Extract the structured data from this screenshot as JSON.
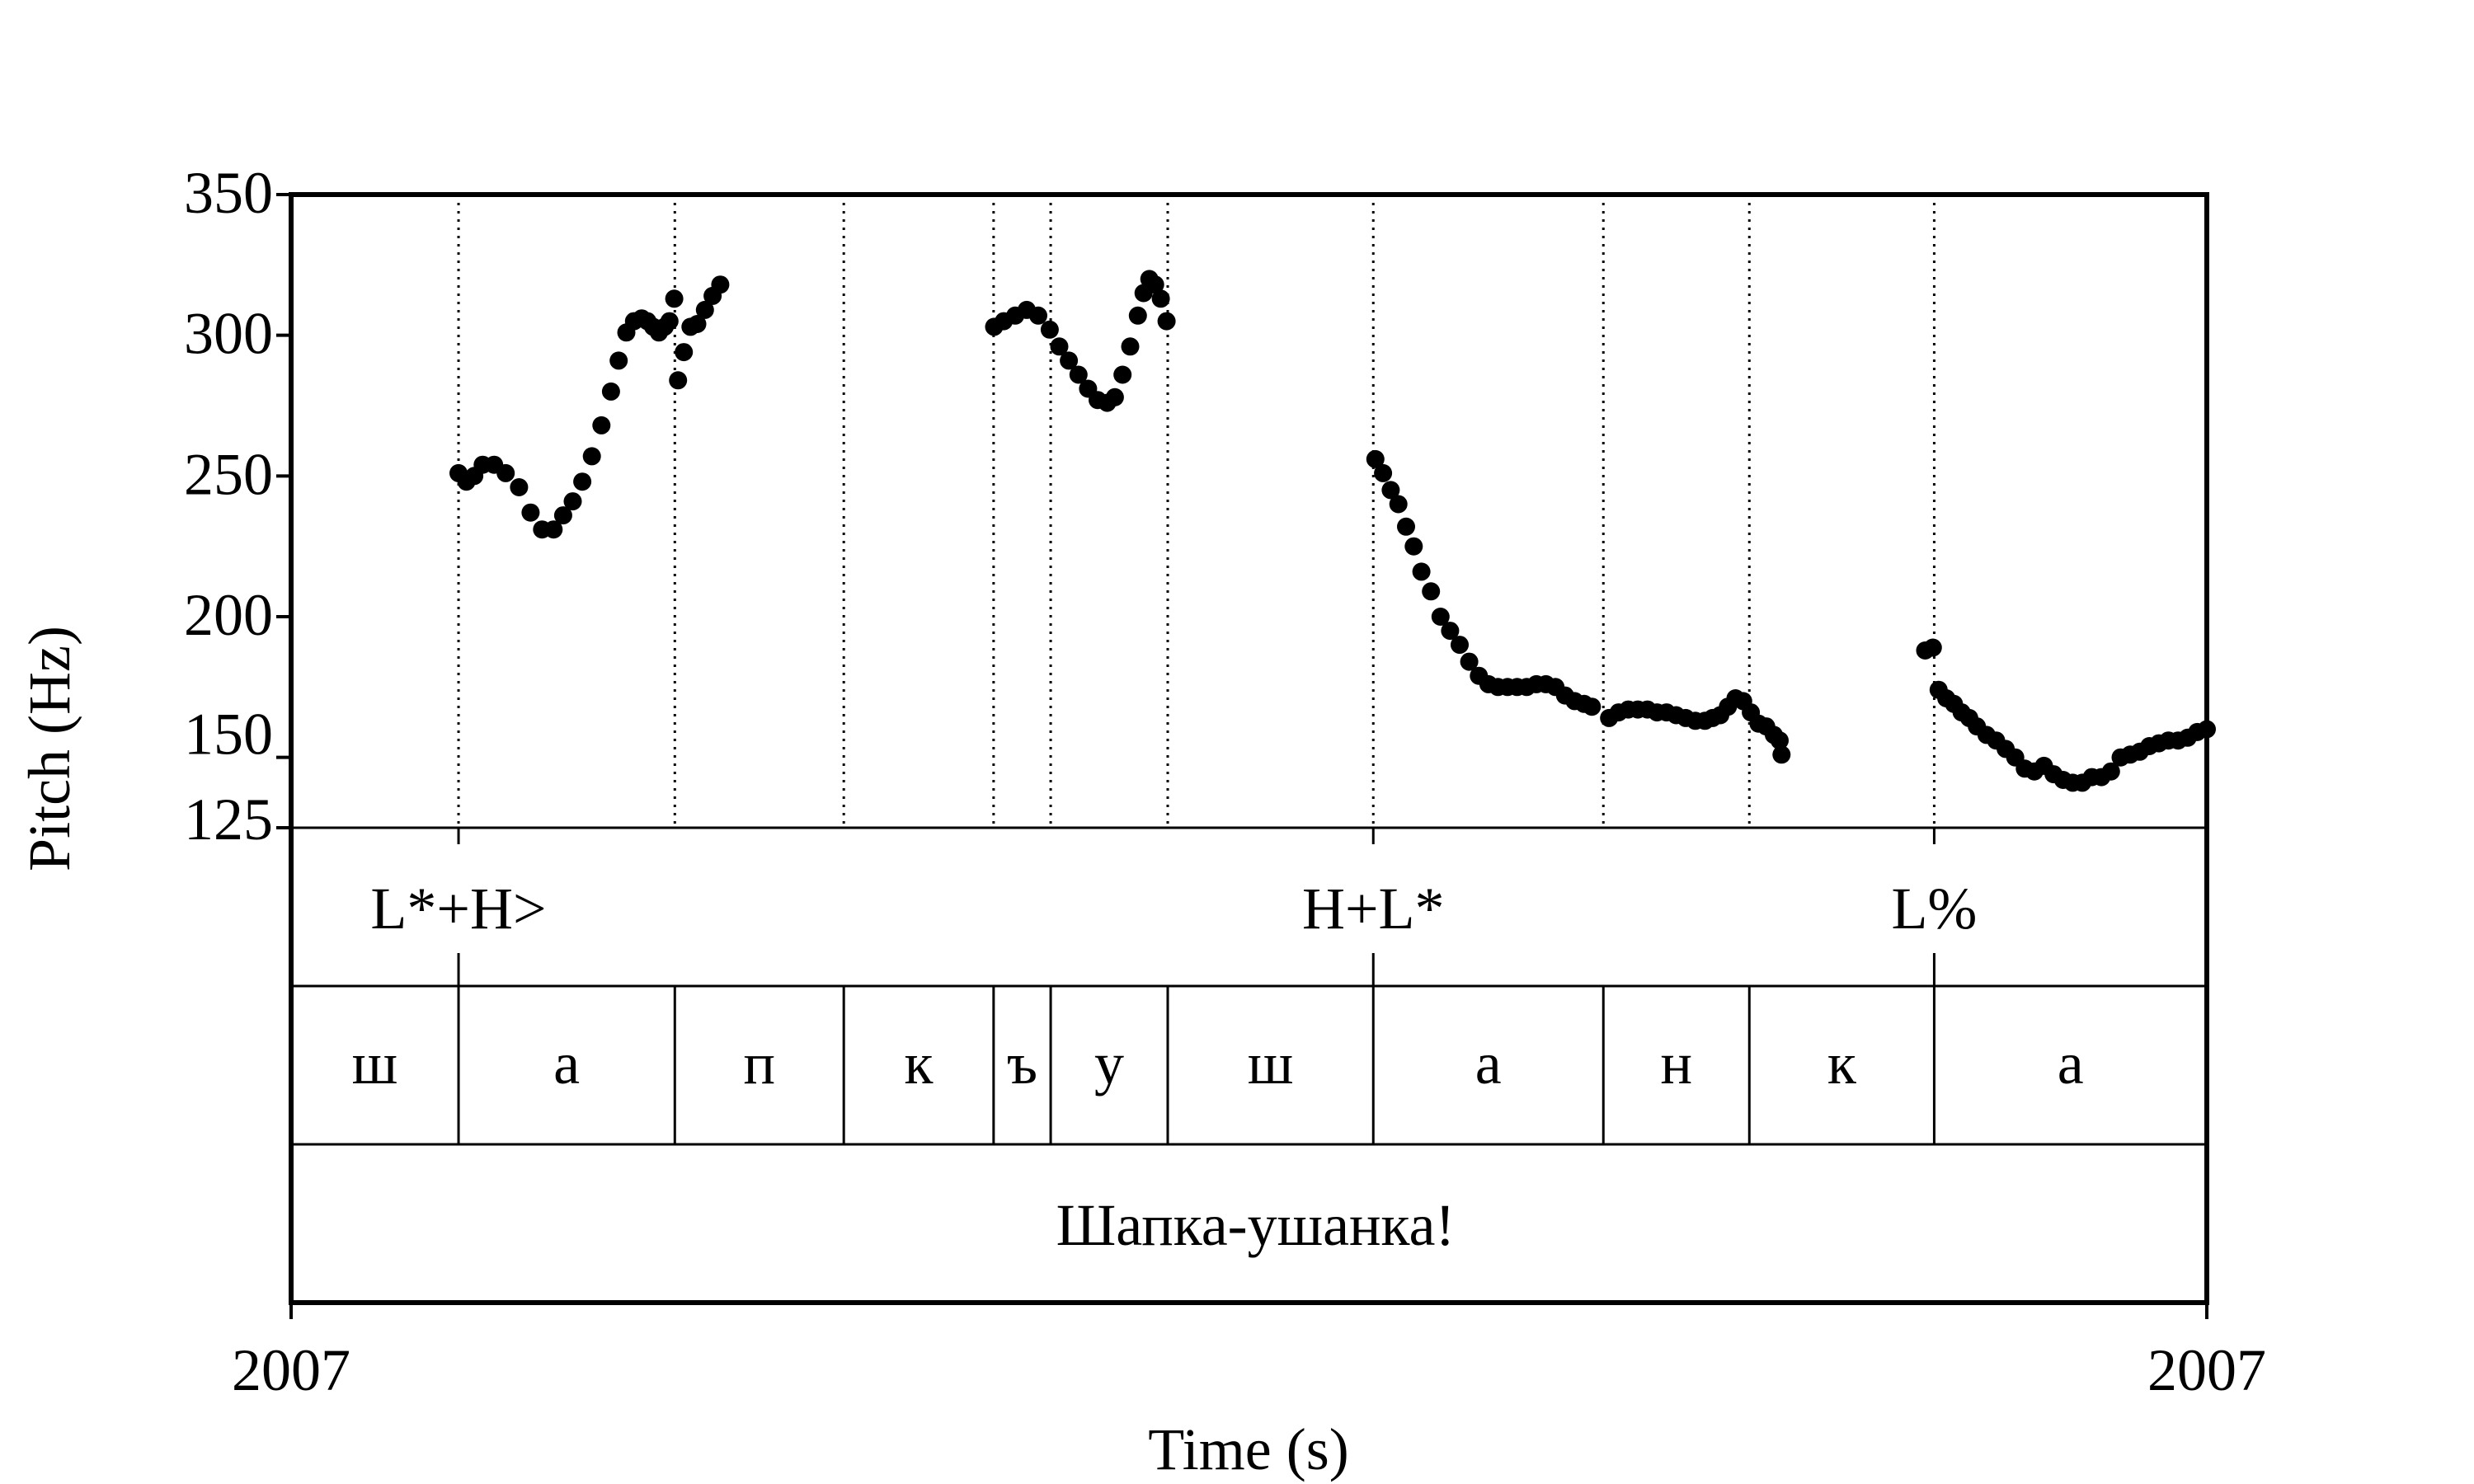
{
  "chart_data": {
    "type": "scatter",
    "xlabel": "Time (s)",
    "ylabel": "Pitch (Hz)",
    "xlim": [
      0,
      1
    ],
    "ylim": [
      125,
      350
    ],
    "x_tick_labels": [
      "2007",
      "2007"
    ],
    "y_ticks": [
      125,
      150,
      200,
      250,
      300,
      350
    ],
    "y_tick_labels": [
      "125",
      "150",
      "200",
      "250",
      "300",
      "350"
    ],
    "boundaries": [
      0.0874,
      0.2003,
      0.2885,
      0.3667,
      0.3965,
      0.4576,
      0.5649,
      0.685,
      0.7612,
      0.8577
    ],
    "tiers": [
      {
        "name": "tones",
        "labels": [
          {
            "text": "L*+H>",
            "x": 0.0874
          },
          {
            "text": "H+L*",
            "x": 0.5649
          },
          {
            "text": "L%",
            "x": 0.8577
          }
        ]
      },
      {
        "name": "segments",
        "intervals": [
          {
            "text": "ш",
            "start": 0.0,
            "end": 0.0874
          },
          {
            "text": "а",
            "start": 0.0874,
            "end": 0.2003
          },
          {
            "text": "п",
            "start": 0.2003,
            "end": 0.2885
          },
          {
            "text": "к",
            "start": 0.2885,
            "end": 0.3667
          },
          {
            "text": "ъ",
            "start": 0.3667,
            "end": 0.3965
          },
          {
            "text": "у",
            "start": 0.3965,
            "end": 0.4576
          },
          {
            "text": "ш",
            "start": 0.4576,
            "end": 0.5649
          },
          {
            "text": "а",
            "start": 0.5649,
            "end": 0.685
          },
          {
            "text": "н",
            "start": 0.685,
            "end": 0.7612
          },
          {
            "text": "к",
            "start": 0.7612,
            "end": 0.8577
          },
          {
            "text": "а",
            "start": 0.8577,
            "end": 1.0
          }
        ]
      },
      {
        "name": "words",
        "intervals": [
          {
            "text": "Шапка-ушанка!",
            "start": 0.0,
            "end": 1.0
          }
        ]
      }
    ],
    "series": [
      {
        "segments": [
          {
            "x": [
              0.0874,
              0.0915,
              0.0956,
              0.1,
              0.106,
              0.112,
              0.119,
              0.125,
              0.131,
              0.137,
              0.142,
              0.147,
              0.152,
              0.157,
              0.162,
              0.167,
              0.171,
              0.175,
              0.179,
              0.183,
              0.186,
              0.189,
              0.192,
              0.195,
              0.1975,
              0.2
            ],
            "y": [
              251,
              248,
              250,
              254,
              254,
              251,
              246,
              237,
              231,
              231,
              236,
              241,
              248,
              257,
              268,
              280,
              291,
              301,
              305,
              306,
              305,
              303,
              301,
              303,
              305,
              313
            ]
          },
          {
            "x": [
              0.202,
              0.205,
              0.2085,
              0.212,
              0.216,
              0.22,
              0.224
            ],
            "y": [
              284,
              294,
              303,
              304,
              309,
              314,
              318
            ]
          }
        ]
      },
      {
        "segments": [
          {
            "x": [
              0.367,
              0.372,
              0.378,
              0.384,
              0.39,
              0.396,
              0.401,
              0.406,
              0.411,
              0.416,
              0.421,
              0.426,
              0.43,
              0.434,
              0.438,
              0.442,
              0.445,
              0.448,
              0.451,
              0.454,
              0.457
            ],
            "y": [
              303,
              305,
              307,
              309,
              307,
              302,
              296,
              291,
              286,
              281,
              277,
              276,
              278,
              286,
              296,
              307,
              315,
              320,
              318,
              313,
              305
            ]
          }
        ]
      },
      {
        "segments": [
          {
            "x": [
              0.566,
              0.57,
              0.574,
              0.578,
              0.582,
              0.586,
              0.59,
              0.595,
              0.6,
              0.605,
              0.61,
              0.615,
              0.62,
              0.625,
              0.63,
              0.635,
              0.64,
              0.645,
              0.65,
              0.655,
              0.66,
              0.665,
              0.67,
              0.675,
              0.679
            ],
            "y": [
              256,
              251,
              245,
              240,
              232,
              225,
              216,
              209,
              200,
              195,
              190,
              184,
              179,
              176,
              175,
              175,
              175,
              175,
              176,
              176,
              175,
              172,
              170,
              169,
              168
            ]
          },
          {
            "x": [
              0.688,
              0.693,
              0.698,
              0.703,
              0.708,
              0.713,
              0.718,
              0.723,
              0.728,
              0.733,
              0.738,
              0.742,
              0.746,
              0.75,
              0.754,
              0.758,
              0.762,
              0.766,
              0.77,
              0.774,
              0.777
            ],
            "y": [
              164,
              166,
              167,
              167,
              167,
              166,
              166,
              165,
              164,
              163,
              163,
              164,
              165,
              168,
              171,
              170,
              166,
              162,
              161,
              158,
              156
            ]
          },
          {
            "x": [
              0.778
            ],
            "y": [
              151
            ]
          }
        ]
      },
      {
        "segments": [
          {
            "x": [
              0.853,
              0.857
            ],
            "y": [
              188,
              189
            ]
          },
          {
            "x": [
              0.86,
              0.864,
              0.868,
              0.872,
              0.876,
              0.88,
              0.885,
              0.89,
              0.895,
              0.9,
              0.905,
              0.91,
              0.915,
              0.92,
              0.925,
              0.93,
              0.935,
              0.94,
              0.945,
              0.95,
              0.955,
              0.96,
              0.965,
              0.97,
              0.975,
              0.98,
              0.985,
              0.99,
              0.995,
              1.0
            ],
            "y": [
              174,
              171,
              169,
              166,
              164,
              161,
              158,
              156,
              153,
              150,
              146,
              145,
              147,
              144,
              142,
              141,
              141,
              143,
              143,
              145,
              150,
              151,
              152,
              154,
              155,
              156,
              156,
              157,
              159,
              160
            ]
          }
        ]
      }
    ]
  }
}
